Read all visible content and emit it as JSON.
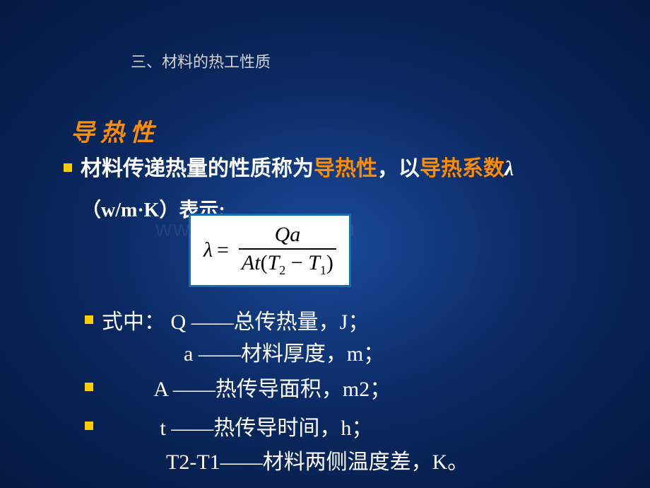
{
  "header": "三、材料的热工性质",
  "watermark": "www.zjxm.com.cn",
  "section_title": "导热性",
  "main_line": {
    "p1": "材料传递热量的性质称为",
    "p2": "导热性",
    "p3": "，以",
    "p4": "导热系数",
    "p5": "λ"
  },
  "sub_line": "（w/m·K）表示:",
  "formula": {
    "lhs": "λ",
    "eq": "=",
    "top": "Qa",
    "bot_a": "At",
    "bot_p1": "(",
    "bot_t2": "T",
    "bot_s2": "2",
    "bot_minus": " − ",
    "bot_t1": "T",
    "bot_s1": "1",
    "bot_p2": ")"
  },
  "defs": {
    "q": "式中：  Q ——总传热量，J；",
    "a": "a ——材料厚度，m；",
    "A": "          A ——热传导面积，m2；",
    "t": "           t ——热传导时间，h；",
    "dt": "T2-T1——材料两侧温度差，K。"
  }
}
